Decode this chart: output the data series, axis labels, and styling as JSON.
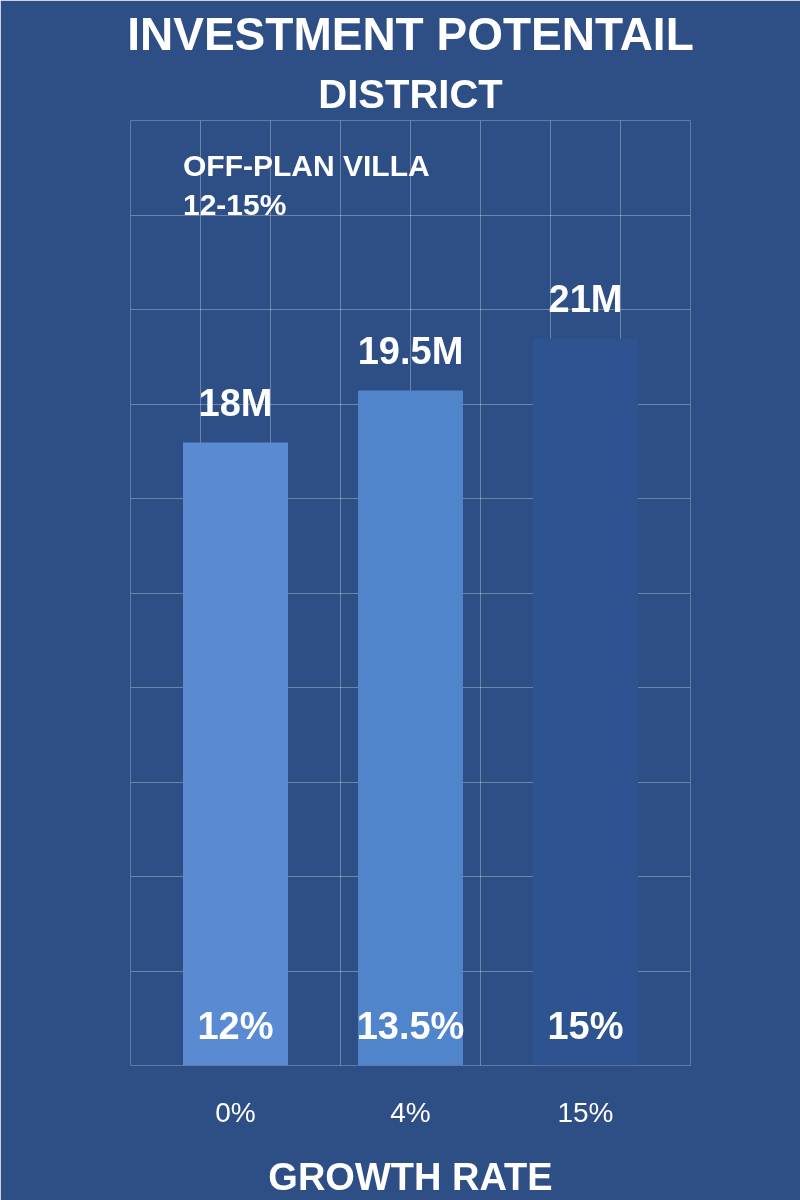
{
  "chart_data": {
    "type": "bar",
    "title": "INVESTMENT POTENTAIL",
    "subtitle": "DISTRICT",
    "xlabel": "GROWTH RATE",
    "categories": [
      "0%",
      "4%",
      "15%"
    ],
    "values": [
      18,
      19.5,
      21
    ],
    "colors": [
      "#5a8bd2",
      "#5084cb",
      "#2d5391"
    ],
    "value_labels": [
      "18M",
      "19.5M",
      "21M"
    ],
    "annotations": [
      "OFF-PLAN VILLA\n12-15%",
      "12%",
      "13.5%",
      "15%"
    ],
    "grid": true
  }
}
